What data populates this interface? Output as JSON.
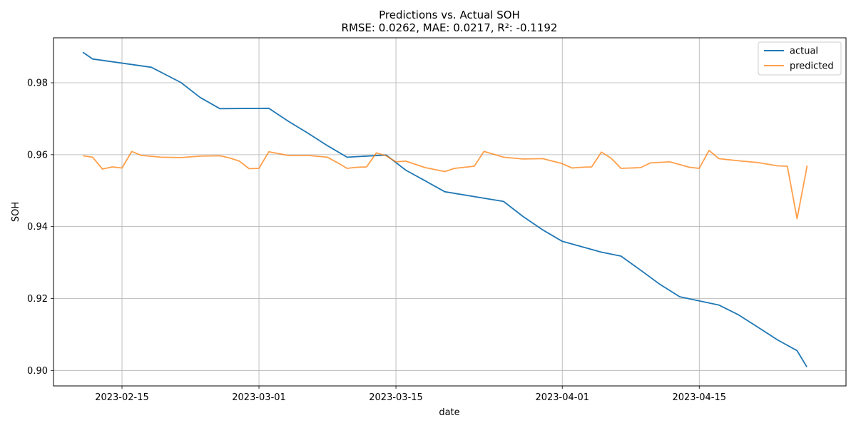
{
  "chart_data": {
    "type": "line",
    "title": "Predictions vs. Actual SOH",
    "subtitle": "RMSE: 0.0262, MAE: 0.0217, R²: -0.1192",
    "xlabel": "date",
    "ylabel": "SOH",
    "xlim": [
      "2023-02-08",
      "2023-04-30"
    ],
    "ylim": [
      0.8957,
      0.9925
    ],
    "grid": true,
    "legend_position": "top-right",
    "x_ticks": [
      "2023-02-15",
      "2023-03-01",
      "2023-03-15",
      "2023-04-01",
      "2023-04-15"
    ],
    "y_ticks": [
      "0.90",
      "0.92",
      "0.94",
      "0.96",
      "0.98"
    ],
    "series": [
      {
        "name": "actual",
        "color": "#1f77b4",
        "x": [
          "2023-02-11",
          "2023-02-12",
          "2023-02-18",
          "2023-02-21",
          "2023-02-23",
          "2023-02-25",
          "2023-03-02",
          "2023-03-04",
          "2023-03-06",
          "2023-03-08",
          "2023-03-10",
          "2023-03-14",
          "2023-03-16",
          "2023-03-18",
          "2023-03-20",
          "2023-03-26",
          "2023-03-28",
          "2023-03-30",
          "2023-04-01",
          "2023-04-05",
          "2023-04-07",
          "2023-04-09",
          "2023-04-11",
          "2023-04-13",
          "2023-04-17",
          "2023-04-19",
          "2023-04-21",
          "2023-04-23",
          "2023-04-25",
          "2023-04-26"
        ],
        "values": [
          0.9885,
          0.9866,
          0.9843,
          0.9801,
          0.9759,
          0.9728,
          0.9729,
          0.9693,
          0.966,
          0.9625,
          0.9593,
          0.9599,
          0.9557,
          0.9527,
          0.9497,
          0.947,
          0.9428,
          0.9391,
          0.9359,
          0.9329,
          0.9318,
          0.9279,
          0.9239,
          0.9205,
          0.9182,
          0.9155,
          0.912,
          0.9085,
          0.9055,
          0.901
        ]
      },
      {
        "name": "predicted",
        "color": "#ff7f0e",
        "x": [
          "2023-02-11",
          "2023-02-12",
          "2023-02-13",
          "2023-02-14",
          "2023-02-15",
          "2023-02-16",
          "2023-02-17",
          "2023-02-19",
          "2023-02-21",
          "2023-02-23",
          "2023-02-25",
          "2023-02-26",
          "2023-02-27",
          "2023-02-28",
          "2023-03-01",
          "2023-03-02",
          "2023-03-04",
          "2023-03-06",
          "2023-03-08",
          "2023-03-09",
          "2023-03-10",
          "2023-03-11",
          "2023-03-12",
          "2023-03-13",
          "2023-03-14",
          "2023-03-15",
          "2023-03-16",
          "2023-03-18",
          "2023-03-20",
          "2023-03-21",
          "2023-03-23",
          "2023-03-24",
          "2023-03-26",
          "2023-03-28",
          "2023-03-30",
          "2023-04-01",
          "2023-04-02",
          "2023-04-03",
          "2023-04-04",
          "2023-04-05",
          "2023-04-06",
          "2023-04-07",
          "2023-04-08",
          "2023-04-09",
          "2023-04-10",
          "2023-04-12",
          "2023-04-14",
          "2023-04-15",
          "2023-04-16",
          "2023-04-17",
          "2023-04-19",
          "2023-04-21",
          "2023-04-23",
          "2023-04-24",
          "2023-04-25",
          "2023-04-26",
          "2023-04-26"
        ],
        "values": [
          0.9597,
          0.9593,
          0.956,
          0.9566,
          0.9563,
          0.9609,
          0.9598,
          0.9593,
          0.9592,
          0.9596,
          0.9597,
          0.9591,
          0.9582,
          0.9561,
          0.9562,
          0.9608,
          0.9598,
          0.9598,
          0.9593,
          0.9578,
          0.9562,
          0.9565,
          0.9566,
          0.9605,
          0.9597,
          0.958,
          0.9582,
          0.9564,
          0.9553,
          0.9562,
          0.9568,
          0.9609,
          0.9593,
          0.9588,
          0.9589,
          0.9575,
          0.9563,
          0.9565,
          0.9566,
          0.9607,
          0.959,
          0.9562,
          0.9563,
          0.9564,
          0.9577,
          0.958,
          0.9565,
          0.9562,
          0.9612,
          0.9589,
          0.9583,
          0.9578,
          0.9569,
          0.9568,
          0.9422,
          0.9565,
          0.957
        ]
      }
    ]
  }
}
